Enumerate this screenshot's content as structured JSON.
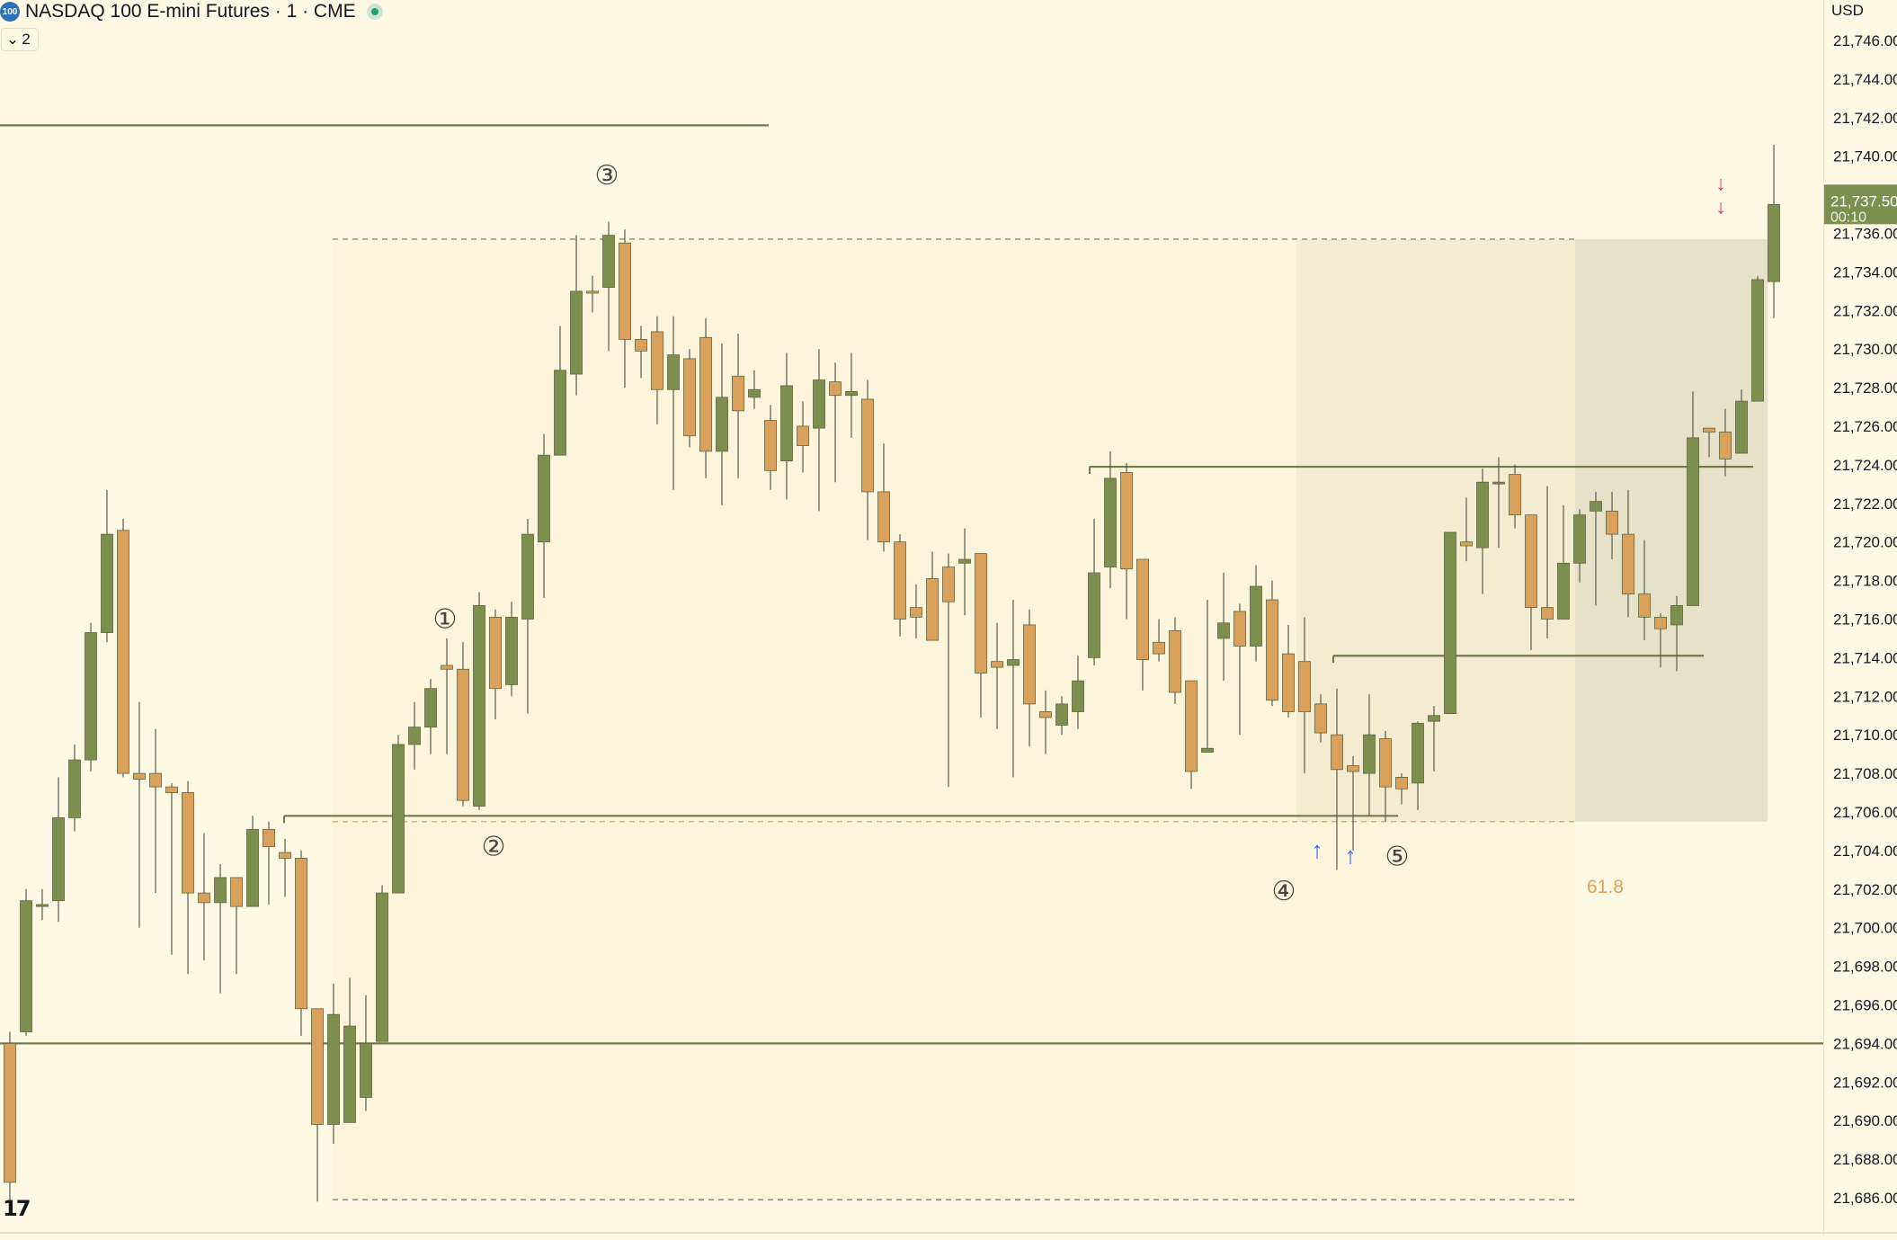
{
  "header": {
    "symbol_badge": "100",
    "title": "NASDAQ 100 E-mini Futures · 1 · CME",
    "collapse_count": "2",
    "currency": "USD",
    "logo": "17"
  },
  "colors": {
    "background": "#fdf8e4",
    "bull": "#7d8f4e",
    "bear": "#d9a15c",
    "line": "#6f7a4c",
    "price_tag": "#7d8f4e",
    "fib_zone": "#f2dfb9",
    "fib_text": "#e0a25a",
    "entry_arrow": "#2962ff",
    "exit_arrow": "#e0303e"
  },
  "chart_data": {
    "type": "candlestick",
    "symbol": "NASDAQ 100 E-mini Futures",
    "interval": "1",
    "exchange": "CME",
    "ylim": [
      21685,
      21747
    ],
    "y_ticks": [
      "21,746.00",
      "21,744.00",
      "21,742.00",
      "21,740.00",
      "21,738.00",
      "21,736.00",
      "21,734.00",
      "21,732.00",
      "21,730.00",
      "21,728.00",
      "21,726.00",
      "21,724.00",
      "21,722.00",
      "21,720.00",
      "21,718.00",
      "21,716.00",
      "21,714.00",
      "21,712.00",
      "21,710.00",
      "21,708.00",
      "21,706.00",
      "21,704.00",
      "21,702.00",
      "21,700.00",
      "21,698.00",
      "21,696.00",
      "21,694.00",
      "21,692.00",
      "21,690.00",
      "21,688.00",
      "21,686.00"
    ],
    "last_price": "21,737.50",
    "countdown": "00:10",
    "candles": [
      [
        21694.0,
        21686.8,
        21694.6,
        21685.5
      ],
      [
        21694.6,
        21701.4,
        21702.0,
        21694.4
      ],
      [
        21701.1,
        21701.2,
        21702.0,
        21700.4
      ],
      [
        21701.4,
        21705.7,
        21707.8,
        21700.3
      ],
      [
        21705.7,
        21708.7,
        21709.5,
        21705.0
      ],
      [
        21708.7,
        21715.3,
        21715.8,
        21708.1
      ],
      [
        21715.3,
        21720.4,
        21722.7,
        21714.8
      ],
      [
        21720.6,
        21708.0,
        21721.2,
        21707.8
      ],
      [
        21708.0,
        21707.7,
        21711.7,
        21700.0
      ],
      [
        21708.0,
        21707.3,
        21710.3,
        21701.8
      ],
      [
        21707.3,
        21707.0,
        21707.5,
        21698.6
      ],
      [
        21707.0,
        21701.8,
        21707.6,
        21697.6
      ],
      [
        21701.8,
        21701.3,
        21704.9,
        21698.3
      ],
      [
        21701.3,
        21702.6,
        21703.3,
        21696.6
      ],
      [
        21702.6,
        21701.1,
        21702.5,
        21697.6
      ],
      [
        21701.1,
        21705.1,
        21705.8,
        21701.7
      ],
      [
        21705.1,
        21704.2,
        21705.5,
        21701.2
      ],
      [
        21703.9,
        21703.6,
        21704.6,
        21701.6
      ],
      [
        21703.6,
        21695.8,
        21704.0,
        21694.4
      ],
      [
        21695.8,
        21689.8,
        21695.6,
        21685.8
      ],
      [
        21689.8,
        21695.5,
        21697.1,
        21688.8
      ],
      [
        21689.9,
        21694.9,
        21697.4,
        21690.2
      ],
      [
        21691.2,
        21694.0,
        21696.5,
        21690.5
      ],
      [
        21694.1,
        21701.8,
        21702.2,
        21694.4
      ],
      [
        21701.8,
        21709.5,
        21710.0,
        21704.4
      ],
      [
        21709.5,
        21710.4,
        21711.7,
        21708.2
      ],
      [
        21710.4,
        21712.4,
        21712.9,
        21709.0
      ],
      [
        21713.6,
        21713.4,
        21715.0,
        21709.0
      ],
      [
        21713.4,
        21706.6,
        21714.8,
        21706.3
      ],
      [
        21706.3,
        21716.7,
        21717.4,
        21706.1
      ],
      [
        21716.1,
        21712.4,
        21716.5,
        21710.8
      ],
      [
        21712.6,
        21716.1,
        21716.9,
        21712.0
      ],
      [
        21716.0,
        21720.4,
        21721.2,
        21711.1
      ],
      [
        21720.0,
        21724.5,
        21725.6,
        21717.1
      ],
      [
        21724.5,
        21728.9,
        21731.2,
        21726.3
      ],
      [
        21728.7,
        21733.0,
        21735.9,
        21727.6
      ],
      [
        21733.0,
        21732.9,
        21733.8,
        21731.9
      ],
      [
        21733.2,
        21735.9,
        21736.6,
        21729.9
      ],
      [
        21735.5,
        21730.5,
        21736.2,
        21728.0
      ],
      [
        21730.5,
        21729.9,
        21731.2,
        21728.5
      ],
      [
        21730.9,
        21727.9,
        21731.7,
        21726.1
      ],
      [
        21727.9,
        21729.7,
        21731.7,
        21722.7
      ],
      [
        21729.5,
        21725.5,
        21730.0,
        21724.9
      ],
      [
        21730.6,
        21724.7,
        21731.6,
        21723.3
      ],
      [
        21724.7,
        21727.5,
        21730.3,
        21721.9
      ],
      [
        21728.6,
        21726.8,
        21730.8,
        21723.3
      ],
      [
        21727.5,
        21727.9,
        21728.9,
        21726.9
      ],
      [
        21726.3,
        21723.7,
        21727.1,
        21722.7
      ],
      [
        21724.2,
        21728.1,
        21729.8,
        21722.2
      ],
      [
        21726.0,
        21725.0,
        21727.3,
        21723.6
      ],
      [
        21725.9,
        21728.4,
        21730.0,
        21721.6
      ],
      [
        21728.3,
        21727.6,
        21729.3,
        21723.1
      ],
      [
        21727.6,
        21727.8,
        21729.8,
        21725.4
      ],
      [
        21727.4,
        21722.6,
        21728.4,
        21720.1
      ],
      [
        21722.6,
        21720.0,
        21725.1,
        21719.5
      ],
      [
        21720.0,
        21716.0,
        21720.4,
        21715.1
      ],
      [
        21716.6,
        21716.1,
        21717.8,
        21715.0
      ],
      [
        21718.1,
        21714.9,
        21719.5,
        21718.0
      ],
      [
        21718.7,
        21716.9,
        21719.4,
        21707.3
      ],
      [
        21718.9,
        21719.1,
        21720.7,
        21716.2
      ],
      [
        21719.4,
        21713.2,
        21719.4,
        21710.9
      ],
      [
        21713.8,
        21713.5,
        21715.8,
        21710.3
      ],
      [
        21713.6,
        21713.9,
        21717.0,
        21707.8
      ],
      [
        21715.7,
        21711.6,
        21716.5,
        21709.4
      ],
      [
        21711.2,
        21710.9,
        21712.3,
        21709.0
      ],
      [
        21710.5,
        21711.6,
        21712.0,
        21710.0
      ],
      [
        21711.2,
        21712.8,
        21714.1,
        21710.3
      ],
      [
        21714.0,
        21718.4,
        21721.2,
        21713.6
      ],
      [
        21718.7,
        21723.3,
        21724.7,
        21717.6
      ],
      [
        21723.6,
        21718.6,
        21724.1,
        21716.0
      ],
      [
        21719.1,
        21713.9,
        21717.0,
        21712.3
      ],
      [
        21714.8,
        21714.2,
        21716.0,
        21713.8
      ],
      [
        21715.4,
        21712.2,
        21716.1,
        21711.6
      ],
      [
        21712.8,
        21708.1,
        21712.6,
        21707.2
      ],
      [
        21709.1,
        21709.3,
        21717.0,
        21709.6
      ],
      [
        21715.0,
        21715.8,
        21718.4,
        21712.8
      ],
      [
        21716.4,
        21714.6,
        21716.8,
        21710.0
      ],
      [
        21714.6,
        21717.7,
        21718.8,
        21713.8
      ],
      [
        21717.0,
        21711.8,
        21718.0,
        21711.5
      ],
      [
        21714.2,
        21711.2,
        21715.7,
        21710.9
      ],
      [
        21713.8,
        21711.2,
        21716.1,
        21708.0
      ],
      [
        21711.6,
        21710.1,
        21712.1,
        21709.6
      ],
      [
        21710.0,
        21708.2,
        21712.4,
        21703.0
      ],
      [
        21708.4,
        21708.1,
        21708.9,
        21704.0
      ],
      [
        21708.0,
        21710.0,
        21712.1,
        21705.8
      ],
      [
        21709.8,
        21707.3,
        21710.2,
        21705.5
      ],
      [
        21707.8,
        21707.2,
        21708.0,
        21706.4
      ],
      [
        21707.5,
        21710.6,
        21710.7,
        21706.1
      ],
      [
        21710.7,
        21711.0,
        21711.5,
        21708.1
      ],
      [
        21711.1,
        21720.5,
        21720.0,
        21711.4
      ],
      [
        21720.0,
        21719.8,
        21722.3,
        21719.0
      ],
      [
        21719.7,
        21723.1,
        21723.8,
        21717.3
      ],
      [
        21723.1,
        21723.1,
        21724.4,
        21719.7
      ],
      [
        21723.5,
        21721.4,
        21724.0,
        21720.7
      ],
      [
        21721.4,
        21716.6,
        21721.4,
        21714.4
      ],
      [
        21716.6,
        21716.0,
        21722.9,
        21715.0
      ],
      [
        21716.0,
        21718.9,
        21721.9,
        21716.3
      ],
      [
        21718.9,
        21721.4,
        21721.7,
        21717.9
      ],
      [
        21721.6,
        21722.1,
        21722.6,
        21716.7
      ],
      [
        21721.6,
        21720.4,
        21722.6,
        21719.1
      ],
      [
        21720.4,
        21717.3,
        21722.7,
        21716.1
      ],
      [
        21717.3,
        21716.1,
        21720.1,
        21714.9
      ],
      [
        21716.1,
        21715.5,
        21716.3,
        21713.5
      ],
      [
        21715.7,
        21716.7,
        21717.2,
        21713.3
      ],
      [
        21716.7,
        21725.4,
        21727.8,
        21718.5
      ],
      [
        21725.9,
        21725.7,
        21725.9,
        21724.4
      ],
      [
        21725.7,
        21724.3,
        21726.9,
        21723.4
      ],
      [
        21724.6,
        21727.3,
        21727.9,
        21725.0
      ],
      [
        21727.3,
        21733.6,
        21733.8,
        21728.0
      ],
      [
        21733.5,
        21737.5,
        21740.6,
        21731.6
      ]
    ],
    "horizontal_lines": [
      21741.6,
      21723.9,
      21714.1,
      21705.8,
      21694.0
    ],
    "dashed_lines": [
      21735.7,
      21705.5,
      21685.9
    ],
    "zones": [
      {
        "kind": "target",
        "from": 21705.5,
        "to": 21735.7
      },
      {
        "kind": "fib",
        "from": 21702.4,
        "to": 21705.5
      }
    ],
    "fib_label": "61.8",
    "wave_labels": [
      "1",
      "2",
      "3",
      "4",
      "5"
    ],
    "annotations": {
      "wave_glyphs": [
        "①",
        "②",
        "③",
        "④",
        "⑤"
      ],
      "entry_arrows": [
        "↑",
        "↑"
      ],
      "exit_arrows": [
        "↓",
        "↓"
      ]
    }
  }
}
